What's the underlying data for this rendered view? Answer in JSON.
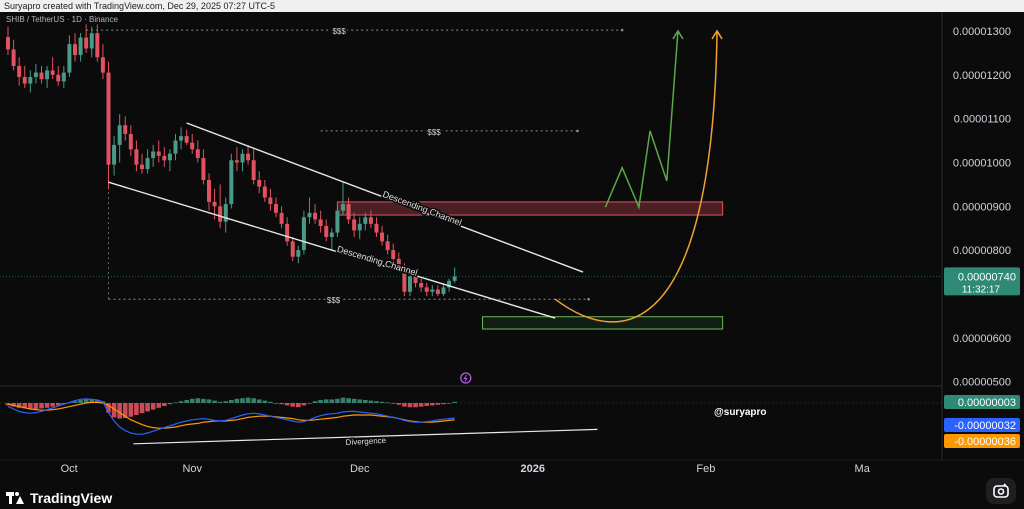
{
  "header": {
    "credit": "Suryapro created with TradingView.com, Dec 29, 2025 07:27 UTC-5",
    "symbol": "SHIB / TetherUS · 1D · Binance"
  },
  "footer": {
    "brand": "TradingView"
  },
  "colors": {
    "background": "#0b0b0c",
    "bull": "#4a9a88",
    "bear": "#e0525f",
    "last_price_badge": "#2e8a74",
    "macd_line": "#2962ff",
    "signal_line": "#ff9800"
  },
  "chart_data": {
    "type": "candlestick",
    "price_axis": {
      "ticks": [
        "0.00001300",
        "0.00001200",
        "0.00001100",
        "0.00001000",
        "0.00000900",
        "0.00000800",
        "0.00000600",
        "0.00000500"
      ],
      "tick_values": [
        13.0,
        12.0,
        11.0,
        10.0,
        9.0,
        8.0,
        6.0,
        5.0
      ],
      "value_unit": "1e-6 USDT",
      "ylim": [
        4.9,
        13.25
      ],
      "last_price": "0.00000740",
      "last_price_value": 7.4,
      "countdown": "11:32:17"
    },
    "time_axis": {
      "labels": [
        "Oct",
        "Nov",
        "Dec",
        "2026",
        "Feb",
        "Ma"
      ],
      "label_day_index": [
        2,
        33,
        63,
        94,
        125,
        153
      ]
    },
    "candles": [
      {
        "o": 12.86,
        "h": 13.1,
        "l": 12.45,
        "c": 12.58
      },
      {
        "o": 12.58,
        "h": 12.8,
        "l": 12.1,
        "c": 12.2
      },
      {
        "o": 12.2,
        "h": 12.4,
        "l": 11.75,
        "c": 11.95
      },
      {
        "o": 11.95,
        "h": 12.2,
        "l": 11.7,
        "c": 11.8
      },
      {
        "o": 11.8,
        "h": 12.1,
        "l": 11.6,
        "c": 11.95
      },
      {
        "o": 11.95,
        "h": 12.25,
        "l": 11.8,
        "c": 12.05
      },
      {
        "o": 12.05,
        "h": 12.2,
        "l": 11.8,
        "c": 11.9
      },
      {
        "o": 11.9,
        "h": 12.2,
        "l": 11.7,
        "c": 12.1
      },
      {
        "o": 12.1,
        "h": 12.4,
        "l": 11.9,
        "c": 12.0
      },
      {
        "o": 12.0,
        "h": 12.2,
        "l": 11.75,
        "c": 11.85
      },
      {
        "o": 11.85,
        "h": 12.2,
        "l": 11.7,
        "c": 12.05
      },
      {
        "o": 12.05,
        "h": 12.9,
        "l": 11.95,
        "c": 12.7
      },
      {
        "o": 12.7,
        "h": 12.95,
        "l": 12.3,
        "c": 12.45
      },
      {
        "o": 12.45,
        "h": 12.95,
        "l": 12.3,
        "c": 12.85
      },
      {
        "o": 12.85,
        "h": 13.15,
        "l": 12.5,
        "c": 12.6
      },
      {
        "o": 12.6,
        "h": 13.1,
        "l": 12.4,
        "c": 12.95
      },
      {
        "o": 12.95,
        "h": 13.15,
        "l": 12.3,
        "c": 12.4
      },
      {
        "o": 12.4,
        "h": 12.7,
        "l": 11.9,
        "c": 12.05
      },
      {
        "o": 12.05,
        "h": 12.3,
        "l": 9.4,
        "c": 9.95
      },
      {
        "o": 9.95,
        "h": 10.6,
        "l": 9.7,
        "c": 10.4
      },
      {
        "o": 10.4,
        "h": 11.1,
        "l": 10.0,
        "c": 10.85
      },
      {
        "o": 10.85,
        "h": 11.05,
        "l": 10.5,
        "c": 10.65
      },
      {
        "o": 10.65,
        "h": 10.85,
        "l": 10.15,
        "c": 10.3
      },
      {
        "o": 10.3,
        "h": 10.5,
        "l": 9.8,
        "c": 9.95
      },
      {
        "o": 9.95,
        "h": 10.2,
        "l": 9.75,
        "c": 9.85
      },
      {
        "o": 9.85,
        "h": 10.3,
        "l": 9.75,
        "c": 10.1
      },
      {
        "o": 10.1,
        "h": 10.4,
        "l": 9.9,
        "c": 10.25
      },
      {
        "o": 10.25,
        "h": 10.5,
        "l": 10.0,
        "c": 10.15
      },
      {
        "o": 10.15,
        "h": 10.35,
        "l": 9.9,
        "c": 10.05
      },
      {
        "o": 10.05,
        "h": 10.3,
        "l": 9.8,
        "c": 10.2
      },
      {
        "o": 10.2,
        "h": 10.65,
        "l": 10.05,
        "c": 10.5
      },
      {
        "o": 10.5,
        "h": 10.8,
        "l": 10.3,
        "c": 10.6
      },
      {
        "o": 10.6,
        "h": 10.75,
        "l": 10.4,
        "c": 10.45
      },
      {
        "o": 10.45,
        "h": 10.65,
        "l": 10.2,
        "c": 10.3
      },
      {
        "o": 10.3,
        "h": 10.5,
        "l": 10.0,
        "c": 10.1
      },
      {
        "o": 10.1,
        "h": 10.3,
        "l": 9.5,
        "c": 9.6
      },
      {
        "o": 9.6,
        "h": 9.75,
        "l": 8.9,
        "c": 9.1
      },
      {
        "o": 9.1,
        "h": 9.4,
        "l": 8.7,
        "c": 9.0
      },
      {
        "o": 9.0,
        "h": 9.5,
        "l": 8.5,
        "c": 8.65
      },
      {
        "o": 8.65,
        "h": 9.2,
        "l": 8.4,
        "c": 9.05
      },
      {
        "o": 9.05,
        "h": 10.2,
        "l": 8.95,
        "c": 10.05
      },
      {
        "o": 10.05,
        "h": 10.35,
        "l": 9.8,
        "c": 10.0
      },
      {
        "o": 10.0,
        "h": 10.3,
        "l": 9.8,
        "c": 10.2
      },
      {
        "o": 10.2,
        "h": 10.4,
        "l": 9.95,
        "c": 10.05
      },
      {
        "o": 10.05,
        "h": 10.3,
        "l": 9.5,
        "c": 9.6
      },
      {
        "o": 9.6,
        "h": 9.8,
        "l": 9.3,
        "c": 9.45
      },
      {
        "o": 9.45,
        "h": 9.6,
        "l": 9.1,
        "c": 9.2
      },
      {
        "o": 9.2,
        "h": 9.4,
        "l": 8.9,
        "c": 9.05
      },
      {
        "o": 9.05,
        "h": 9.2,
        "l": 8.75,
        "c": 8.85
      },
      {
        "o": 8.85,
        "h": 9.0,
        "l": 8.5,
        "c": 8.6
      },
      {
        "o": 8.6,
        "h": 8.75,
        "l": 8.1,
        "c": 8.2
      },
      {
        "o": 8.2,
        "h": 8.3,
        "l": 7.75,
        "c": 7.85
      },
      {
        "o": 7.85,
        "h": 8.1,
        "l": 7.7,
        "c": 8.0
      },
      {
        "o": 8.0,
        "h": 8.9,
        "l": 7.9,
        "c": 8.75
      },
      {
        "o": 8.75,
        "h": 9.2,
        "l": 8.6,
        "c": 8.85
      },
      {
        "o": 8.85,
        "h": 9.05,
        "l": 8.6,
        "c": 8.7
      },
      {
        "o": 8.7,
        "h": 8.9,
        "l": 8.4,
        "c": 8.55
      },
      {
        "o": 8.55,
        "h": 8.7,
        "l": 8.2,
        "c": 8.3
      },
      {
        "o": 8.3,
        "h": 8.5,
        "l": 8.0,
        "c": 8.4
      },
      {
        "o": 8.4,
        "h": 9.0,
        "l": 8.3,
        "c": 8.9
      },
      {
        "o": 8.9,
        "h": 9.55,
        "l": 8.8,
        "c": 9.05
      },
      {
        "o": 9.05,
        "h": 9.2,
        "l": 8.6,
        "c": 8.7
      },
      {
        "o": 8.7,
        "h": 8.85,
        "l": 8.3,
        "c": 8.45
      },
      {
        "o": 8.45,
        "h": 8.75,
        "l": 8.25,
        "c": 8.6
      },
      {
        "o": 8.6,
        "h": 8.85,
        "l": 8.45,
        "c": 8.75
      },
      {
        "o": 8.75,
        "h": 8.9,
        "l": 8.5,
        "c": 8.6
      },
      {
        "o": 8.6,
        "h": 8.75,
        "l": 8.3,
        "c": 8.4
      },
      {
        "o": 8.4,
        "h": 8.55,
        "l": 8.1,
        "c": 8.2
      },
      {
        "o": 8.2,
        "h": 8.35,
        "l": 7.9,
        "c": 8.0
      },
      {
        "o": 8.0,
        "h": 8.15,
        "l": 7.7,
        "c": 7.8
      },
      {
        "o": 7.8,
        "h": 7.95,
        "l": 7.5,
        "c": 7.6
      },
      {
        "o": 7.6,
        "h": 7.7,
        "l": 6.95,
        "c": 7.05
      },
      {
        "o": 7.05,
        "h": 7.5,
        "l": 6.95,
        "c": 7.4
      },
      {
        "o": 7.4,
        "h": 7.5,
        "l": 7.15,
        "c": 7.25
      },
      {
        "o": 7.25,
        "h": 7.35,
        "l": 7.05,
        "c": 7.15
      },
      {
        "o": 7.15,
        "h": 7.25,
        "l": 6.95,
        "c": 7.05
      },
      {
        "o": 7.05,
        "h": 7.2,
        "l": 6.95,
        "c": 7.1
      },
      {
        "o": 7.1,
        "h": 7.2,
        "l": 6.95,
        "c": 7.0
      },
      {
        "o": 7.0,
        "h": 7.25,
        "l": 6.95,
        "c": 7.15
      },
      {
        "o": 7.15,
        "h": 7.35,
        "l": 7.05,
        "c": 7.3
      },
      {
        "o": 7.3,
        "h": 7.6,
        "l": 7.25,
        "c": 7.4
      }
    ],
    "levels": [
      {
        "label": "$$$",
        "price": 13.02,
        "from_day": 14,
        "to_day": 110
      },
      {
        "label": "$$$",
        "price": 10.72,
        "from_day": 56,
        "to_day": 102
      },
      {
        "label": "$$$",
        "price": 6.88,
        "from_day": 18,
        "to_day": 104
      }
    ],
    "channel": {
      "label": "Descending Channel",
      "upper": [
        [
          32,
          10.9
        ],
        [
          103,
          7.5
        ]
      ],
      "lower": [
        [
          18,
          9.55
        ],
        [
          98,
          6.45
        ]
      ]
    },
    "zones": [
      {
        "type": "resistance",
        "from_day": 59,
        "to_day": 128,
        "top": 9.1,
        "bottom": 8.8
      },
      {
        "type": "support",
        "from_day": 85,
        "to_day": 128,
        "top": 6.48,
        "bottom": 6.2
      }
    ],
    "projections": [
      {
        "color": "#5aa945",
        "points": [
          [
            107,
            8.98
          ],
          [
            110,
            9.88
          ],
          [
            113,
            8.98
          ],
          [
            115,
            10.72
          ],
          [
            118,
            9.58
          ],
          [
            120,
            13.0
          ]
        ]
      },
      {
        "color": "#f0a134",
        "curve": [
          [
            98,
            6.88
          ],
          [
            110,
            6.3
          ],
          [
            128,
            6.45
          ],
          [
            127,
            13.0
          ]
        ]
      }
    ],
    "indicator": {
      "name": "MACD",
      "value_badges": [
        "0.00000003",
        "-0.00000032",
        "-0.00000036"
      ],
      "divergence_label": "Divergence",
      "histogram": [
        -0.2,
        -0.3,
        -0.4,
        -0.45,
        -0.5,
        -0.5,
        -0.45,
        -0.4,
        -0.3,
        -0.2,
        -0.1,
        0.05,
        0.15,
        0.25,
        0.3,
        0.3,
        0.25,
        0.15,
        -0.8,
        -1.2,
        -1.3,
        -1.25,
        -1.15,
        -1.0,
        -0.85,
        -0.7,
        -0.55,
        -0.4,
        -0.25,
        -0.1,
        0.05,
        0.15,
        0.25,
        0.35,
        0.4,
        0.35,
        0.3,
        0.2,
        0.1,
        0.15,
        0.25,
        0.35,
        0.4,
        0.45,
        0.4,
        0.3,
        0.2,
        0.1,
        0.0,
        -0.1,
        -0.2,
        -0.3,
        -0.35,
        -0.2,
        0.0,
        0.15,
        0.25,
        0.3,
        0.3,
        0.35,
        0.45,
        0.4,
        0.35,
        0.3,
        0.25,
        0.2,
        0.15,
        0.1,
        0.05,
        -0.05,
        -0.15,
        -0.3,
        -0.35,
        -0.35,
        -0.3,
        -0.25,
        -0.2,
        -0.15,
        -0.1,
        0.0,
        0.1
      ],
      "macd": [
        -0.3,
        -0.5,
        -0.7,
        -0.8,
        -0.85,
        -0.8,
        -0.7,
        -0.55,
        -0.4,
        -0.25,
        -0.1,
        0.05,
        0.2,
        0.3,
        0.35,
        0.3,
        0.25,
        0.1,
        -0.8,
        -1.5,
        -2.0,
        -2.3,
        -2.5,
        -2.6,
        -2.6,
        -2.5,
        -2.35,
        -2.2,
        -2.05,
        -1.9,
        -1.75,
        -1.6,
        -1.5,
        -1.4,
        -1.35,
        -1.3,
        -1.35,
        -1.45,
        -1.5,
        -1.45,
        -1.3,
        -1.15,
        -1.0,
        -0.9,
        -0.85,
        -0.9,
        -1.0,
        -1.1,
        -1.2,
        -1.3,
        -1.4,
        -1.5,
        -1.6,
        -1.55,
        -1.4,
        -1.2,
        -1.05,
        -0.95,
        -0.9,
        -0.85,
        -0.75,
        -0.7,
        -0.7,
        -0.75,
        -0.8,
        -0.85,
        -0.9,
        -1.0,
        -1.1,
        -1.2,
        -1.3,
        -1.45,
        -1.55,
        -1.6,
        -1.6,
        -1.55,
        -1.5,
        -1.4,
        -1.35,
        -1.3,
        -1.25
      ],
      "signal": [
        -0.1,
        -0.2,
        -0.3,
        -0.4,
        -0.5,
        -0.55,
        -0.6,
        -0.6,
        -0.55,
        -0.5,
        -0.4,
        -0.3,
        -0.2,
        -0.1,
        0.0,
        0.05,
        0.05,
        0.0,
        -0.2,
        -0.5,
        -0.8,
        -1.1,
        -1.4,
        -1.6,
        -1.8,
        -1.95,
        -2.05,
        -2.1,
        -2.1,
        -2.05,
        -2.0,
        -1.9,
        -1.8,
        -1.75,
        -1.7,
        -1.6,
        -1.55,
        -1.5,
        -1.5,
        -1.5,
        -1.45,
        -1.4,
        -1.3,
        -1.2,
        -1.15,
        -1.1,
        -1.1,
        -1.1,
        -1.15,
        -1.2,
        -1.25,
        -1.3,
        -1.4,
        -1.45,
        -1.45,
        -1.4,
        -1.35,
        -1.3,
        -1.25,
        -1.2,
        -1.1,
        -1.05,
        -1.0,
        -1.0,
        -1.0,
        -1.0,
        -1.05,
        -1.1,
        -1.15,
        -1.2,
        -1.3,
        -1.4,
        -1.5,
        -1.55,
        -1.6,
        -1.6,
        -1.6,
        -1.55,
        -1.5,
        -1.45,
        -1.4
      ],
      "divergence_line": [
        [
          18,
          -3.4
        ],
        [
          102,
          -2.2
        ]
      ]
    },
    "watermark": "@suryapro"
  }
}
